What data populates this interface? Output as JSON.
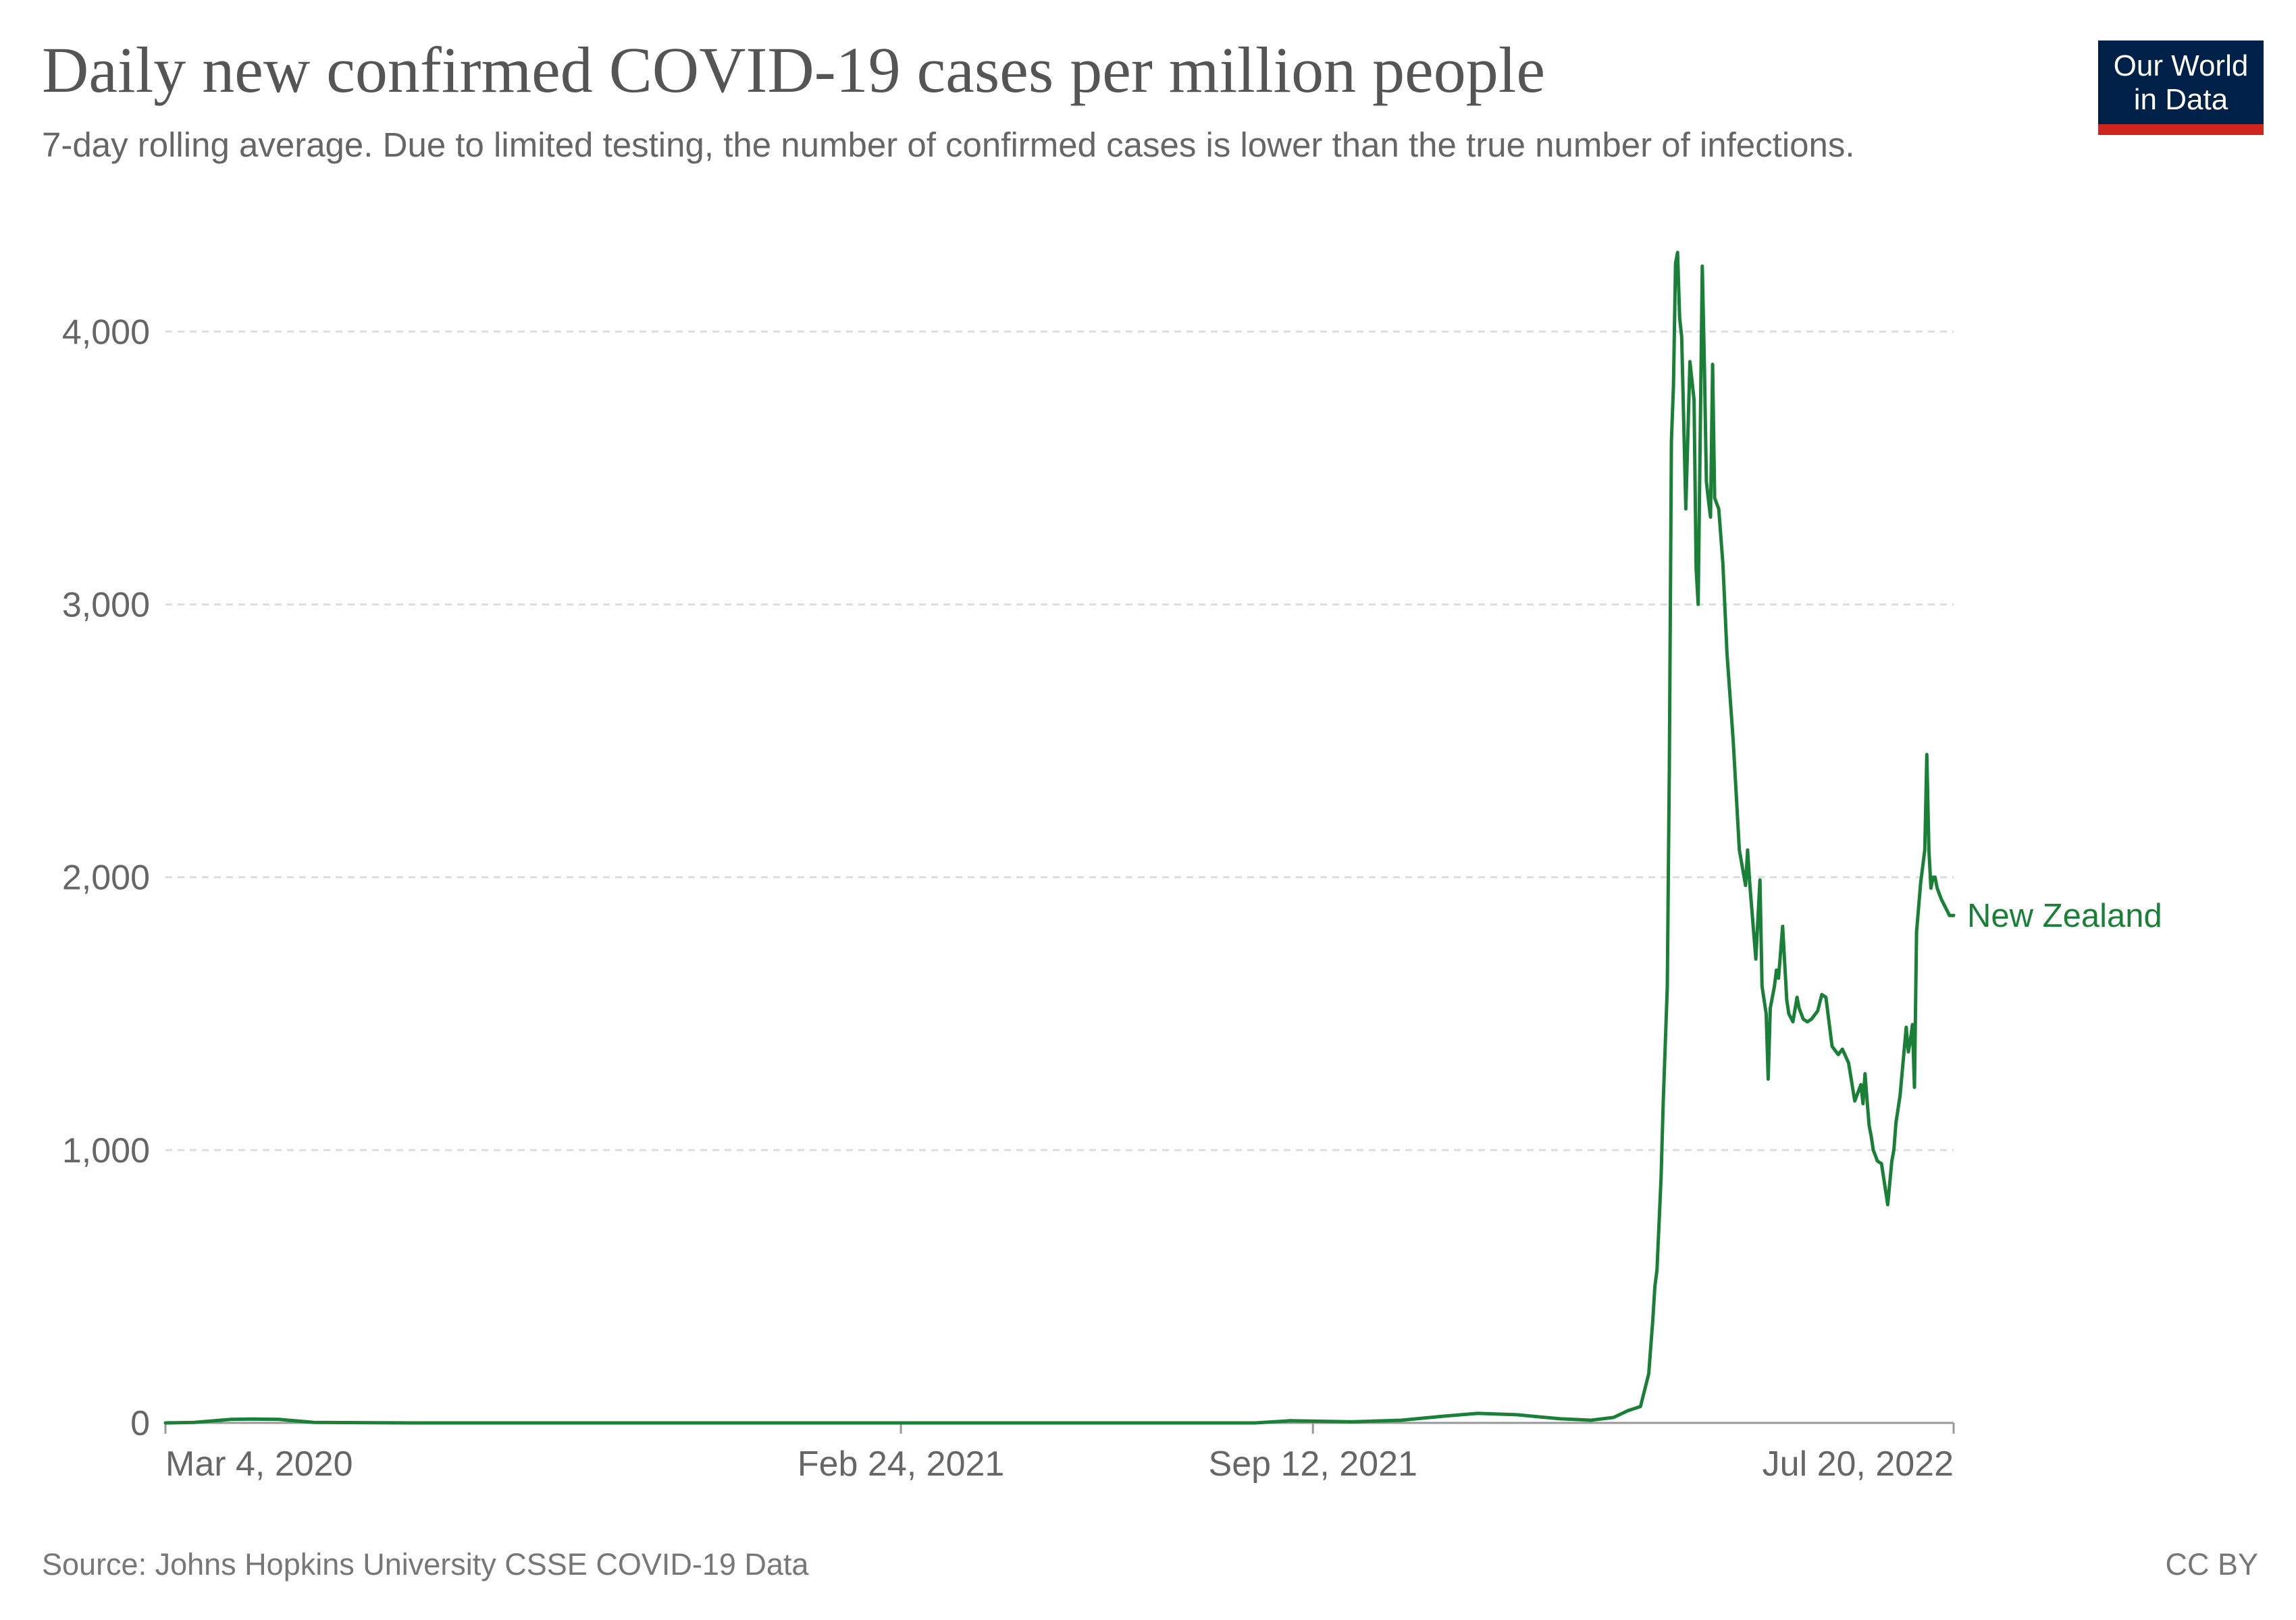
{
  "header": {
    "title": "Daily new confirmed COVID-19 cases per million people",
    "subtitle": "7-day rolling average. Due to limited testing, the number of confirmed cases is lower than the true number of infections."
  },
  "logo": {
    "line1": "Our World",
    "line2": "in Data",
    "bg_color": "#002147",
    "accent_color": "#ce261e"
  },
  "footer": {
    "source": "Source: Johns Hopkins University CSSE COVID-19 Data",
    "license": "CC BY"
  },
  "chart_data": {
    "type": "line",
    "title": "Daily new confirmed COVID-19 cases per million people",
    "subtitle": "7-day rolling average. Due to limited testing, the number of confirmed cases is lower than the true number of infections.",
    "xlabel": "",
    "ylabel": "",
    "xlim": [
      "2020-03-04",
      "2022-07-20"
    ],
    "ylim": [
      0,
      4300
    ],
    "y_ticks": [
      0,
      1000,
      2000,
      3000,
      4000
    ],
    "y_tick_labels": [
      "0",
      "1,000",
      "2,000",
      "3,000",
      "4,000"
    ],
    "x_ticks": [
      "2020-03-04",
      "2021-02-24",
      "2021-09-12",
      "2022-07-20"
    ],
    "x_tick_labels": [
      "Mar 4, 2020",
      "Feb 24, 2021",
      "Sep 12, 2021",
      "Jul 20, 2022"
    ],
    "grid": "horizontal dashed",
    "legend": "line end label",
    "line_color": "#1a7f37",
    "series": [
      {
        "name": "New Zealand",
        "x": [
          "2020-03-04",
          "2020-03-18",
          "2020-03-28",
          "2020-04-05",
          "2020-04-15",
          "2020-04-28",
          "2020-05-15",
          "2020-07-01",
          "2020-09-01",
          "2020-12-01",
          "2021-03-01",
          "2021-06-01",
          "2021-08-15",
          "2021-09-01",
          "2021-10-01",
          "2021-10-25",
          "2021-11-15",
          "2021-12-01",
          "2021-12-20",
          "2022-01-10",
          "2022-01-25",
          "2022-02-05",
          "2022-02-12",
          "2022-02-18",
          "2022-02-22",
          "2022-02-24",
          "2022-02-25",
          "2022-02-26",
          "2022-02-28",
          "2022-03-01",
          "2022-03-03",
          "2022-03-04",
          "2022-03-05",
          "2022-03-06",
          "2022-03-07",
          "2022-03-08",
          "2022-03-09",
          "2022-03-10",
          "2022-03-12",
          "2022-03-14",
          "2022-03-16",
          "2022-03-17",
          "2022-03-18",
          "2022-03-20",
          "2022-03-21",
          "2022-03-22",
          "2022-03-23",
          "2022-03-24",
          "2022-03-25",
          "2022-03-26",
          "2022-03-28",
          "2022-03-30",
          "2022-04-01",
          "2022-04-04",
          "2022-04-07",
          "2022-04-10",
          "2022-04-11",
          "2022-04-12",
          "2022-04-15",
          "2022-04-17",
          "2022-04-18",
          "2022-04-20",
          "2022-04-21",
          "2022-04-22",
          "2022-04-24",
          "2022-04-25",
          "2022-04-26",
          "2022-04-28",
          "2022-04-30",
          "2022-05-01",
          "2022-05-03",
          "2022-05-05",
          "2022-05-06",
          "2022-05-08",
          "2022-05-10",
          "2022-05-12",
          "2022-05-15",
          "2022-05-17",
          "2022-05-19",
          "2022-05-20",
          "2022-05-22",
          "2022-05-25",
          "2022-05-27",
          "2022-05-30",
          "2022-06-02",
          "2022-06-05",
          "2022-06-06",
          "2022-06-07",
          "2022-06-08",
          "2022-06-09",
          "2022-06-10",
          "2022-06-11",
          "2022-06-12",
          "2022-06-13",
          "2022-06-15",
          "2022-06-18",
          "2022-06-20",
          "2022-06-21",
          "2022-06-22",
          "2022-06-24",
          "2022-06-27",
          "2022-06-28",
          "2022-06-29",
          "2022-06-30",
          "2022-07-01",
          "2022-07-02",
          "2022-07-04",
          "2022-07-06",
          "2022-07-07",
          "2022-07-08",
          "2022-07-09",
          "2022-07-10",
          "2022-07-11",
          "2022-07-12",
          "2022-07-14",
          "2022-07-16",
          "2022-07-18",
          "2022-07-20"
        ],
        "values": [
          0,
          2,
          8,
          13,
          14,
          13,
          2,
          0,
          0,
          0,
          0,
          0,
          0,
          8,
          4,
          10,
          25,
          35,
          30,
          15,
          10,
          20,
          45,
          60,
          180,
          380,
          500,
          560,
          900,
          1170,
          1600,
          2400,
          3600,
          3800,
          4250,
          4290,
          4050,
          3980,
          3350,
          3890,
          3750,
          3130,
          3000,
          4240,
          3880,
          3450,
          3380,
          3320,
          3880,
          3390,
          3350,
          3150,
          2820,
          2500,
          2100,
          1970,
          2100,
          1980,
          1700,
          1990,
          1600,
          1500,
          1260,
          1520,
          1600,
          1660,
          1630,
          1820,
          1550,
          1500,
          1470,
          1560,
          1520,
          1480,
          1470,
          1480,
          1510,
          1570,
          1560,
          1500,
          1380,
          1350,
          1370,
          1320,
          1180,
          1240,
          1170,
          1280,
          1180,
          1090,
          1050,
          1000,
          980,
          960,
          950,
          800,
          960,
          1000,
          1100,
          1200,
          1450,
          1360,
          1400,
          1460,
          1230,
          1800,
          1980,
          2100,
          2450,
          2100,
          1960,
          2000,
          2000,
          1960,
          1920,
          1890,
          1860,
          1860
        ]
      }
    ]
  }
}
